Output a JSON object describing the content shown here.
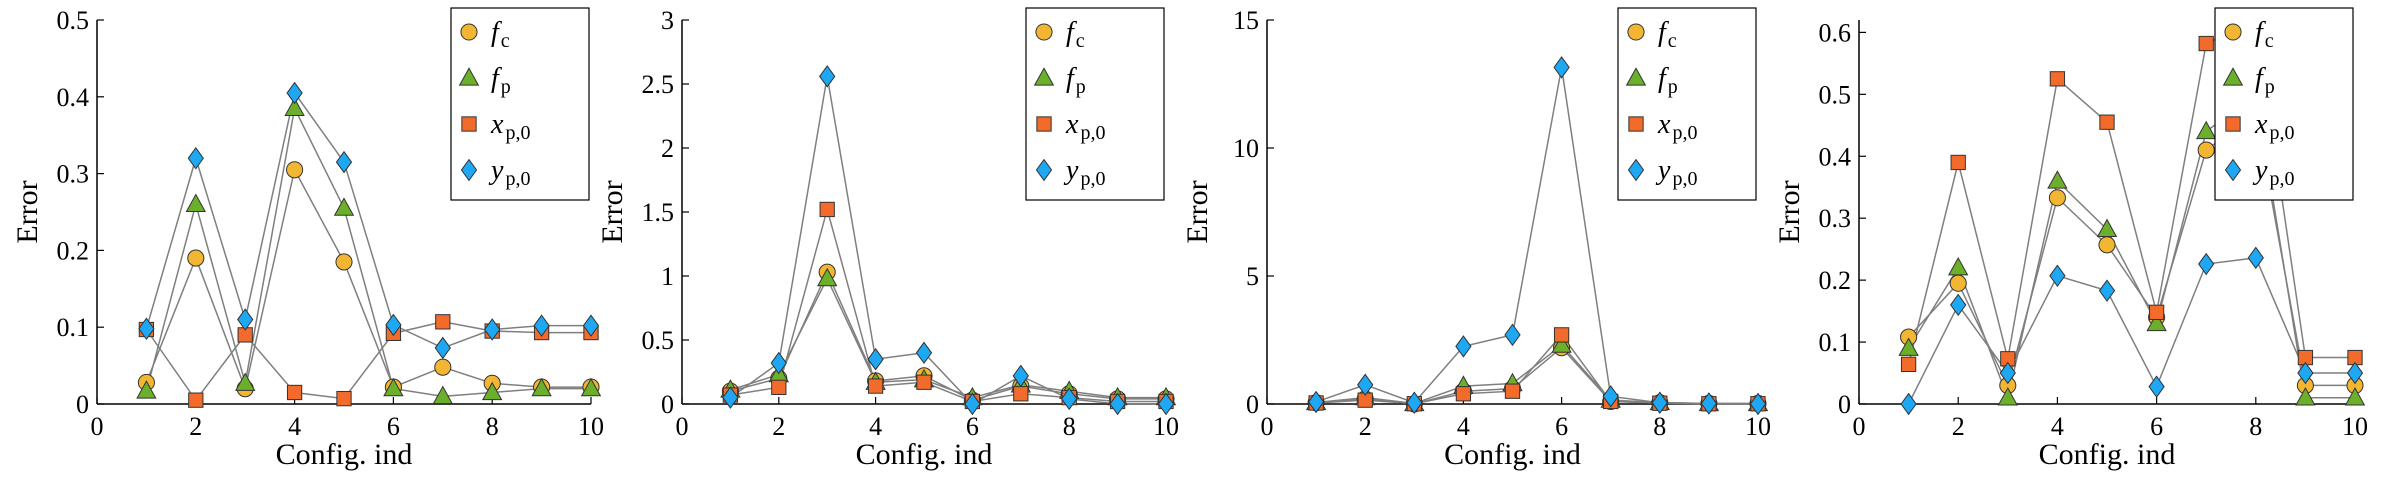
{
  "palette": {
    "f_c": "#F2B632",
    "f_p": "#6BAF2B",
    "x_p0": "#F26B2A",
    "y_p0": "#1EA7F2",
    "line": "#7f7f7f"
  },
  "legend_entries": [
    {
      "key": "f_c",
      "main": "f",
      "sub": "c",
      "marker": "circle"
    },
    {
      "key": "f_p",
      "main": "f",
      "sub": "p",
      "marker": "triangle"
    },
    {
      "key": "x_p0",
      "main": "x",
      "sub": "p,0",
      "marker": "square"
    },
    {
      "key": "y_p0",
      "main": "y",
      "sub": "p,0",
      "marker": "diamond"
    }
  ],
  "chart_data": [
    {
      "type": "line",
      "xlabel": "Config. ind",
      "ylabel": "Error",
      "xlim": [
        0,
        10
      ],
      "ylim": [
        0,
        0.5
      ],
      "xticks": [
        "0",
        "2",
        "4",
        "6",
        "8",
        "10"
      ],
      "yticks": [
        "0",
        "0.1",
        "0.2",
        "0.3",
        "0.4",
        "0.5"
      ],
      "x": [
        1,
        2,
        3,
        4,
        5,
        6,
        7,
        8,
        9,
        10
      ],
      "legend": "top-right",
      "series": [
        {
          "key": "f_c",
          "values": [
            0.028,
            0.19,
            0.02,
            0.305,
            0.185,
            0.022,
            0.048,
            0.027,
            0.022,
            0.022
          ]
        },
        {
          "key": "f_p",
          "values": [
            0.017,
            0.26,
            0.027,
            0.385,
            0.255,
            0.02,
            0.01,
            0.015,
            0.02,
            0.02
          ]
        },
        {
          "key": "x_p0",
          "values": [
            0.097,
            0.005,
            0.09,
            0.015,
            0.007,
            0.092,
            0.107,
            0.095,
            0.093,
            0.093
          ]
        },
        {
          "key": "y_p0",
          "values": [
            0.098,
            0.32,
            0.11,
            0.405,
            0.315,
            0.103,
            0.073,
            0.097,
            0.102,
            0.102
          ]
        }
      ]
    },
    {
      "type": "line",
      "xlabel": "Config. ind",
      "ylabel": "Error",
      "xlim": [
        0,
        10
      ],
      "ylim": [
        0,
        3
      ],
      "xticks": [
        "0",
        "2",
        "4",
        "6",
        "8",
        "10"
      ],
      "yticks": [
        "0",
        "0.5",
        "1",
        "1.5",
        "2",
        "2.5",
        "3"
      ],
      "x": [
        1,
        2,
        3,
        4,
        5,
        6,
        7,
        8,
        9,
        10
      ],
      "legend": "top-right",
      "series": [
        {
          "key": "f_c",
          "values": [
            0.1,
            0.2,
            1.03,
            0.18,
            0.22,
            0.03,
            0.14,
            0.08,
            0.04,
            0.04
          ]
        },
        {
          "key": "f_p",
          "values": [
            0.11,
            0.23,
            0.98,
            0.17,
            0.19,
            0.05,
            0.15,
            0.1,
            0.05,
            0.05
          ]
        },
        {
          "key": "x_p0",
          "values": [
            0.07,
            0.13,
            1.52,
            0.14,
            0.17,
            0.02,
            0.08,
            0.05,
            0.02,
            0.02
          ]
        },
        {
          "key": "y_p0",
          "values": [
            0.05,
            0.32,
            2.56,
            0.35,
            0.4,
            0.0,
            0.22,
            0.04,
            0.0,
            0.0
          ]
        }
      ]
    },
    {
      "type": "line",
      "xlabel": "Config. ind",
      "ylabel": "Error",
      "xlim": [
        0,
        10
      ],
      "ylim": [
        0,
        15
      ],
      "xticks": [
        "0",
        "2",
        "4",
        "6",
        "8",
        "10"
      ],
      "yticks": [
        "0",
        "5",
        "10",
        "15"
      ],
      "x": [
        1,
        2,
        3,
        4,
        5,
        6,
        7,
        8,
        9,
        10
      ],
      "legend": "top-right",
      "series": [
        {
          "key": "f_c",
          "values": [
            0.05,
            0.2,
            0.0,
            0.5,
            0.6,
            2.2,
            0.1,
            0.05,
            0.02,
            0.02
          ]
        },
        {
          "key": "f_p",
          "values": [
            0.06,
            0.25,
            0.02,
            0.7,
            0.8,
            2.3,
            0.15,
            0.06,
            0.02,
            0.02
          ]
        },
        {
          "key": "x_p0",
          "values": [
            0.04,
            0.15,
            0.01,
            0.4,
            0.5,
            2.7,
            0.1,
            0.03,
            0.01,
            0.01
          ]
        },
        {
          "key": "y_p0",
          "values": [
            0.08,
            0.75,
            0.05,
            2.25,
            2.7,
            13.15,
            0.3,
            0.05,
            0.02,
            0.0
          ]
        }
      ]
    },
    {
      "type": "line",
      "xlabel": "Config. ind",
      "ylabel": "Error",
      "xlim": [
        0,
        10
      ],
      "ylim": [
        0,
        0.62
      ],
      "xticks": [
        "0",
        "2",
        "4",
        "6",
        "8",
        "10"
      ],
      "yticks": [
        "0",
        "0.1",
        "0.2",
        "0.3",
        "0.4",
        "0.5",
        "0.6"
      ],
      "x": [
        1,
        2,
        3,
        4,
        5,
        6,
        7,
        8,
        9,
        10
      ],
      "legend": "top-right",
      "series": [
        {
          "key": "f_c",
          "values": [
            0.108,
            0.195,
            0.03,
            0.333,
            0.257,
            0.14,
            0.41,
            0.47,
            0.03,
            0.03
          ]
        },
        {
          "key": "f_p",
          "values": [
            0.09,
            0.22,
            0.01,
            0.36,
            0.282,
            0.13,
            0.44,
            0.5,
            0.01,
            0.01
          ]
        },
        {
          "key": "x_p0",
          "values": [
            0.064,
            0.39,
            0.073,
            0.525,
            0.455,
            0.148,
            0.582,
            0.618,
            0.075,
            0.075
          ]
        },
        {
          "key": "y_p0",
          "values": [
            0.0,
            0.16,
            0.05,
            0.207,
            0.183,
            0.028,
            0.226,
            0.236,
            0.05,
            0.05
          ]
        }
      ]
    }
  ]
}
